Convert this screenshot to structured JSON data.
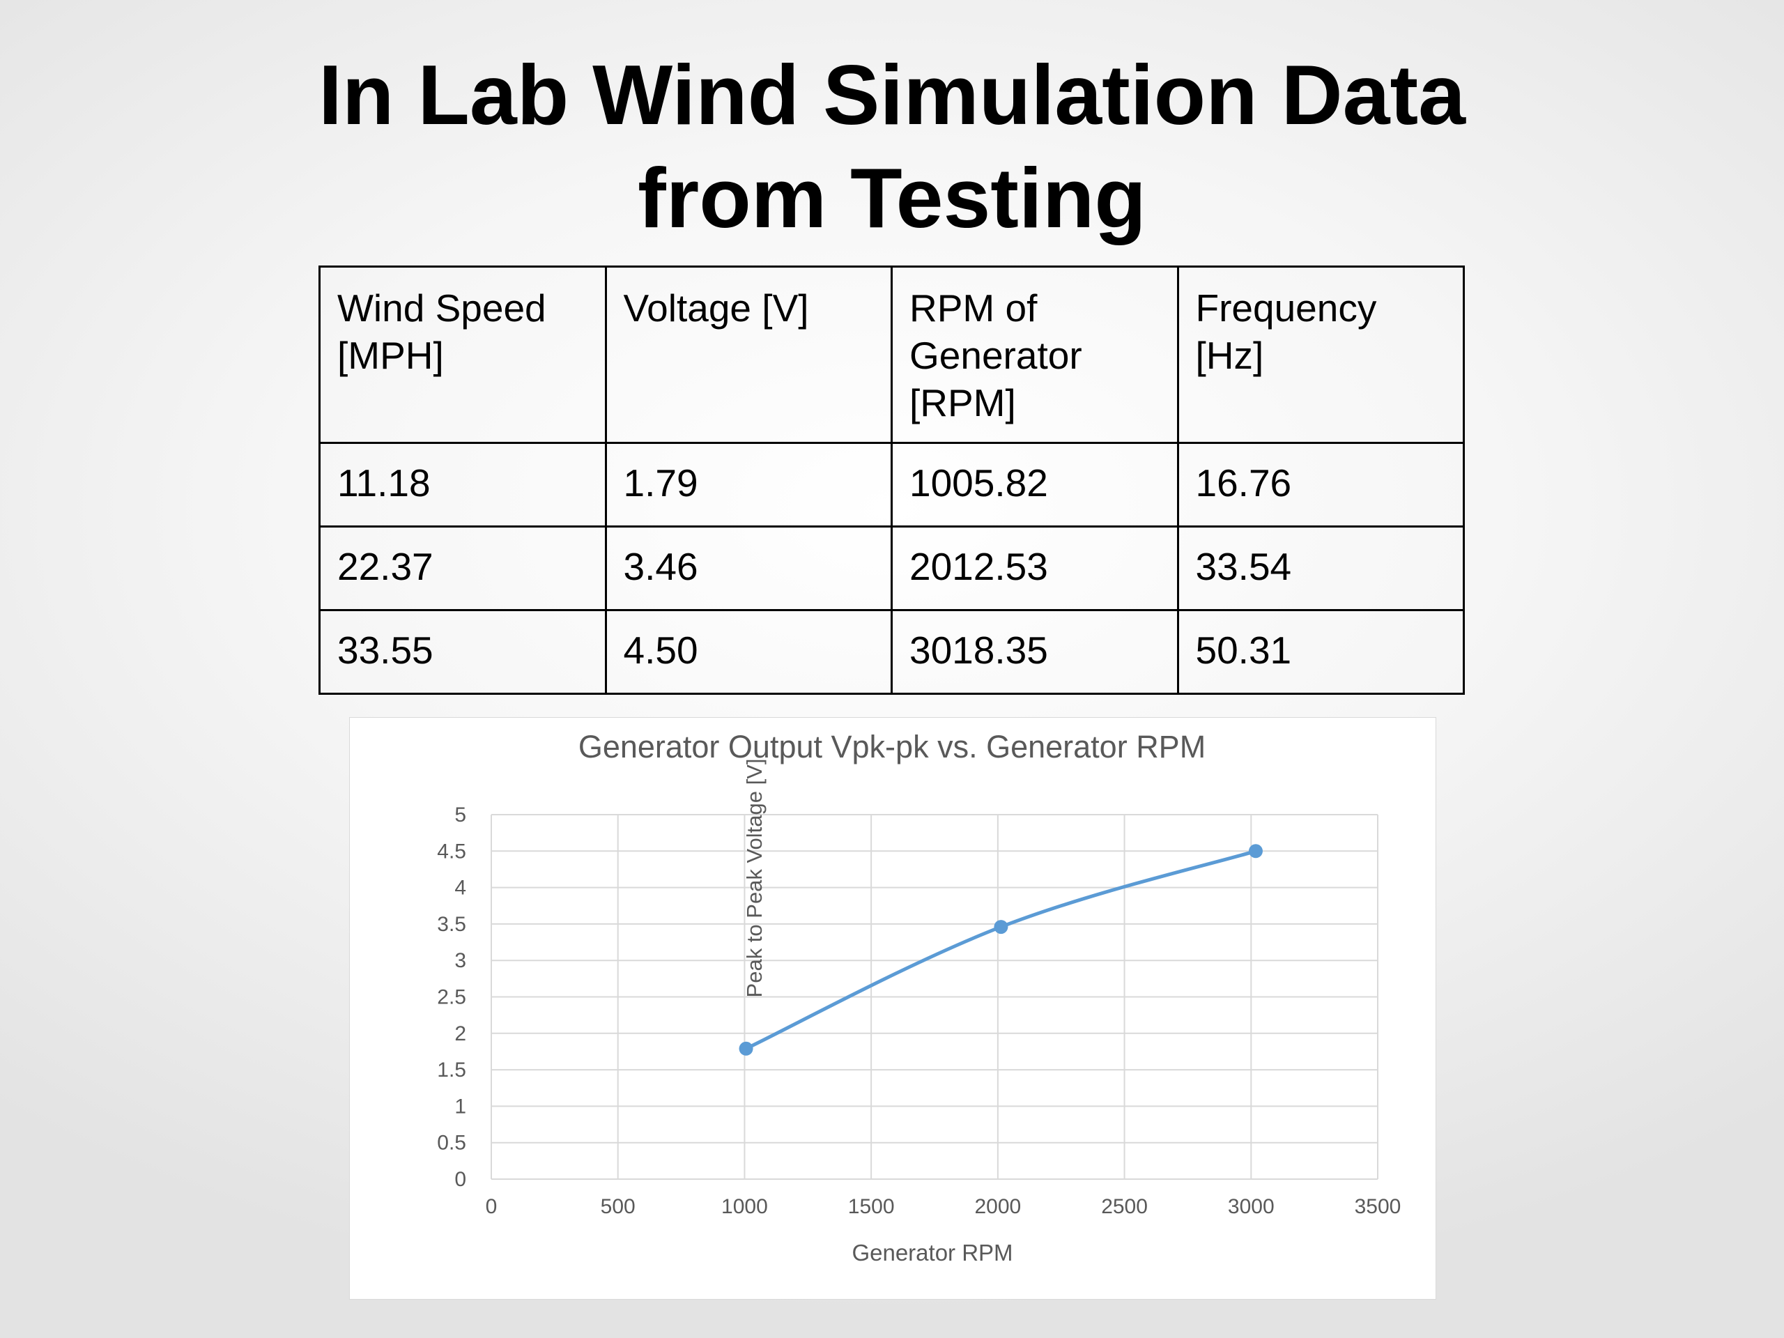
{
  "slide": {
    "title_line1": "In Lab Wind Simulation Data",
    "title_line2": "from Testing"
  },
  "table": {
    "headers": [
      [
        "Wind Speed",
        "[MPH]"
      ],
      [
        "Voltage [V]"
      ],
      [
        "RPM of",
        "Generator",
        "[RPM]"
      ],
      [
        "Frequency",
        "[Hz]"
      ]
    ],
    "rows": [
      [
        "11.18",
        "1.79",
        "1005.82",
        "16.76"
      ],
      [
        "22.37",
        "3.46",
        "2012.53",
        "33.54"
      ],
      [
        "33.55",
        "4.50",
        "3018.35",
        "50.31"
      ]
    ]
  },
  "chart_data": {
    "type": "line",
    "title": "Generator Output Vpk-pk vs. Generator RPM",
    "xlabel": "Generator RPM",
    "ylabel": "Peak to Peak Voltage [V]",
    "xlim": [
      0,
      3500
    ],
    "ylim": [
      0,
      5
    ],
    "x_ticks": [
      "0",
      "500",
      "1000",
      "1500",
      "2000",
      "2500",
      "3000",
      "3500"
    ],
    "y_ticks": [
      "0",
      "0.5",
      "1",
      "1.5",
      "2",
      "2.5",
      "3",
      "3.5",
      "4",
      "4.5",
      "5"
    ],
    "grid": true,
    "legend": "none",
    "smoothed": true,
    "series": [
      {
        "color": "#5b9bd5",
        "x": [
          1005.82,
          2012.53,
          3018.35
        ],
        "y": [
          1.79,
          3.46,
          4.5
        ]
      }
    ]
  }
}
